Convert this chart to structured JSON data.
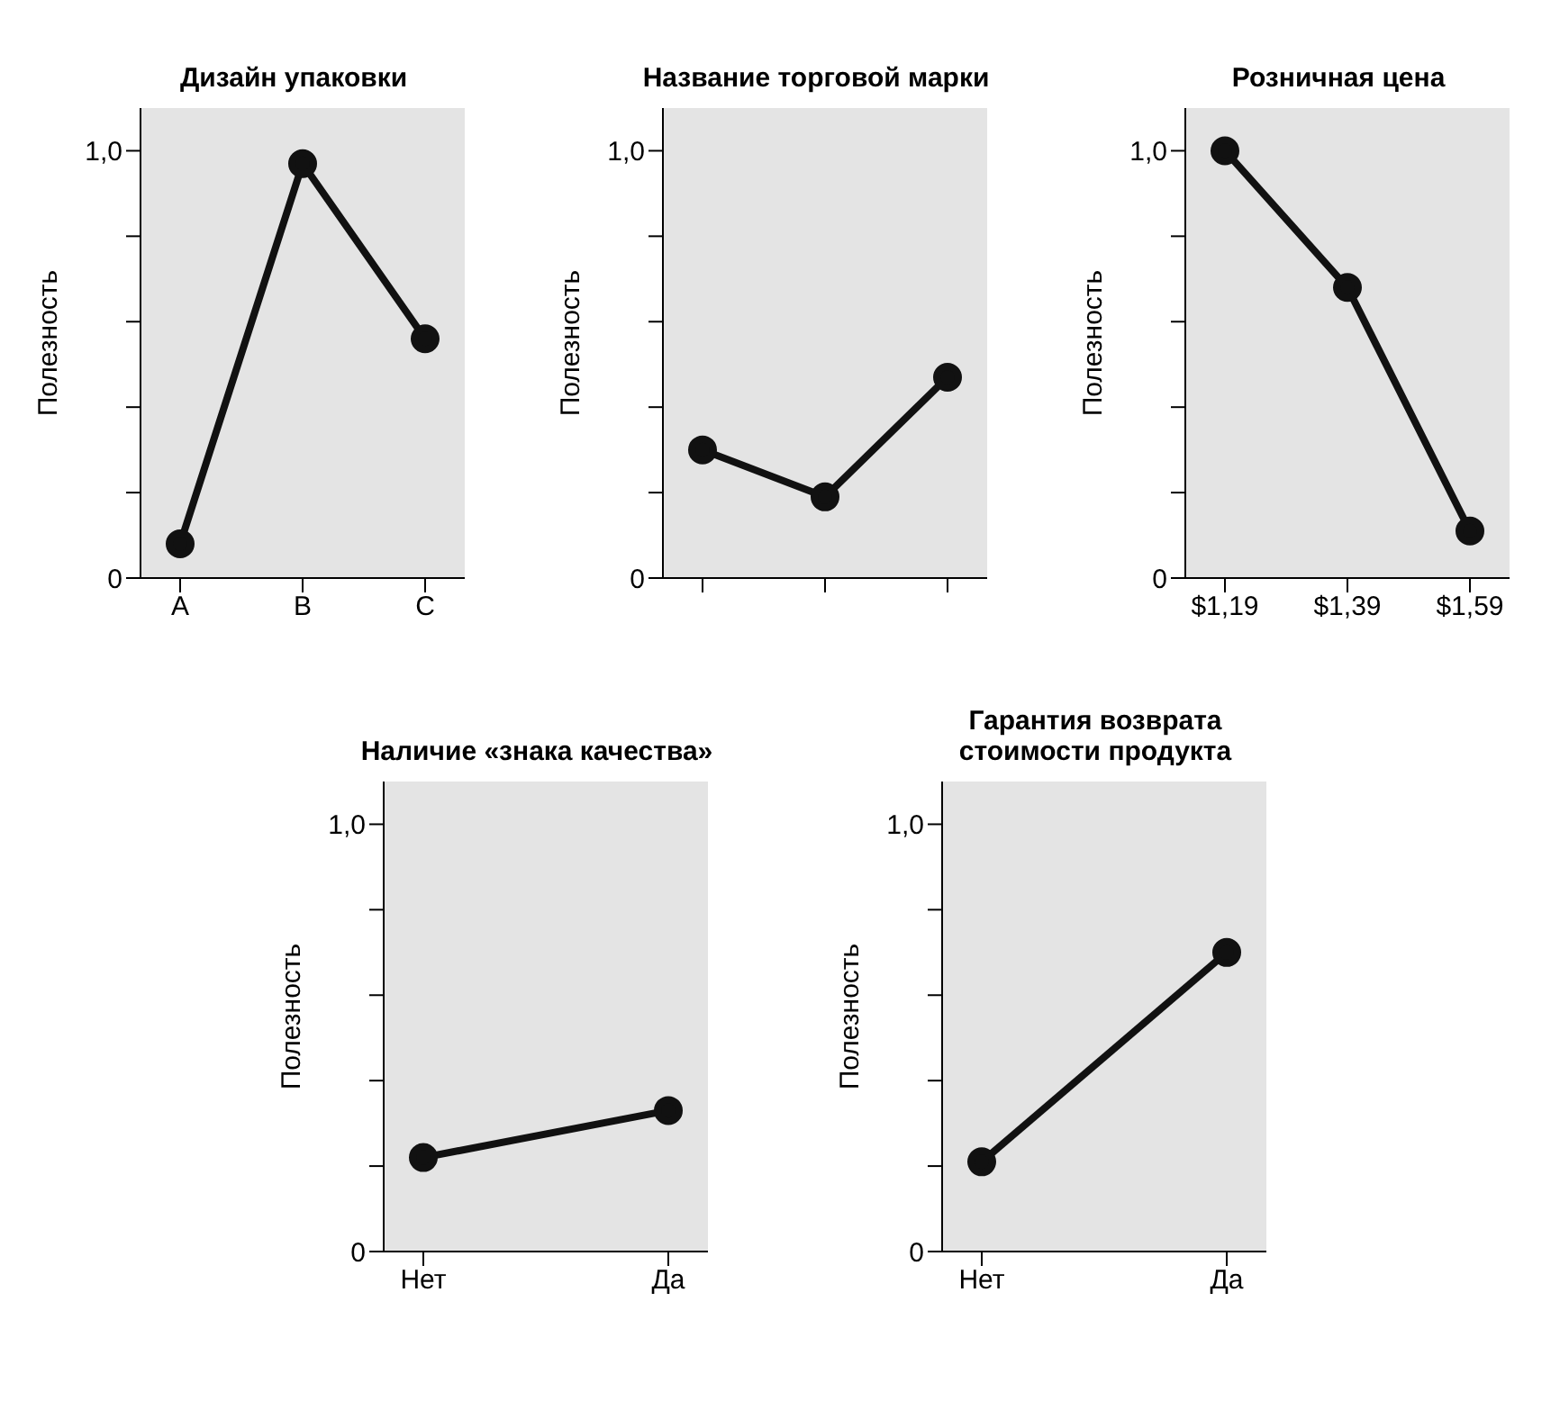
{
  "chart_data": [
    {
      "type": "line",
      "title": "Дизайн упаковки",
      "ylabel": "Полезность",
      "categories": [
        "A",
        "B",
        "C"
      ],
      "series": [
        {
          "color": "#111111",
          "values": [
            0.08,
            0.97,
            0.56
          ]
        }
      ],
      "ylim": [
        0,
        1.1
      ],
      "yticks": [
        {
          "value": 0,
          "label": "0"
        },
        {
          "value": 0.2,
          "label": null
        },
        {
          "value": 0.4,
          "label": null
        },
        {
          "value": 0.6,
          "label": null
        },
        {
          "value": 0.8,
          "label": null
        },
        {
          "value": 1,
          "label": "1,0"
        }
      ],
      "marker": "circle",
      "grid": false,
      "legend": false
    },
    {
      "type": "line",
      "title": "Название торговой марки",
      "ylabel": "Полезность",
      "categories": [
        null,
        null,
        null
      ],
      "series": [
        {
          "color": "#111111",
          "values": [
            0.3,
            0.19,
            0.47
          ]
        }
      ],
      "ylim": [
        0,
        1.1
      ],
      "yticks": [
        {
          "value": 0,
          "label": "0"
        },
        {
          "value": 0.2,
          "label": null
        },
        {
          "value": 0.4,
          "label": null
        },
        {
          "value": 0.6,
          "label": null
        },
        {
          "value": 0.8,
          "label": null
        },
        {
          "value": 1,
          "label": "1,0"
        }
      ],
      "marker": "circle",
      "grid": false,
      "legend": false
    },
    {
      "type": "line",
      "title": "Розничная цена",
      "ylabel": "Полезность",
      "categories": [
        "$1,19",
        "$1,39",
        "$1,59"
      ],
      "series": [
        {
          "color": "#111111",
          "values": [
            1.0,
            0.68,
            0.11
          ]
        }
      ],
      "ylim": [
        0,
        1.1
      ],
      "yticks": [
        {
          "value": 0,
          "label": "0"
        },
        {
          "value": 0.2,
          "label": null
        },
        {
          "value": 0.4,
          "label": null
        },
        {
          "value": 0.6,
          "label": null
        },
        {
          "value": 0.8,
          "label": null
        },
        {
          "value": 1,
          "label": "1,0"
        }
      ],
      "marker": "circle",
      "grid": false,
      "legend": false
    },
    {
      "type": "line",
      "title": "Наличие «знака качества»",
      "ylabel": "Полезность",
      "categories": [
        "Нет",
        "Да"
      ],
      "series": [
        {
          "color": "#111111",
          "values": [
            0.22,
            0.33
          ]
        }
      ],
      "ylim": [
        0,
        1.1
      ],
      "yticks": [
        {
          "value": 0,
          "label": "0"
        },
        {
          "value": 0.2,
          "label": null
        },
        {
          "value": 0.4,
          "label": null
        },
        {
          "value": 0.6,
          "label": null
        },
        {
          "value": 0.8,
          "label": null
        },
        {
          "value": 1,
          "label": "1,0"
        }
      ],
      "marker": "circle",
      "grid": false,
      "legend": false
    },
    {
      "type": "line",
      "title": "Гарантия возврата стоимости продукта",
      "ylabel": "Полезность",
      "categories": [
        "Нет",
        "Да"
      ],
      "series": [
        {
          "color": "#111111",
          "values": [
            0.21,
            0.7
          ]
        }
      ],
      "ylim": [
        0,
        1.1
      ],
      "yticks": [
        {
          "value": 0,
          "label": "0"
        },
        {
          "value": 0.2,
          "label": null
        },
        {
          "value": 0.4,
          "label": null
        },
        {
          "value": 0.6,
          "label": null
        },
        {
          "value": 0.8,
          "label": null
        },
        {
          "value": 1,
          "label": "1,0"
        }
      ],
      "marker": "circle",
      "grid": false,
      "legend": false
    }
  ]
}
